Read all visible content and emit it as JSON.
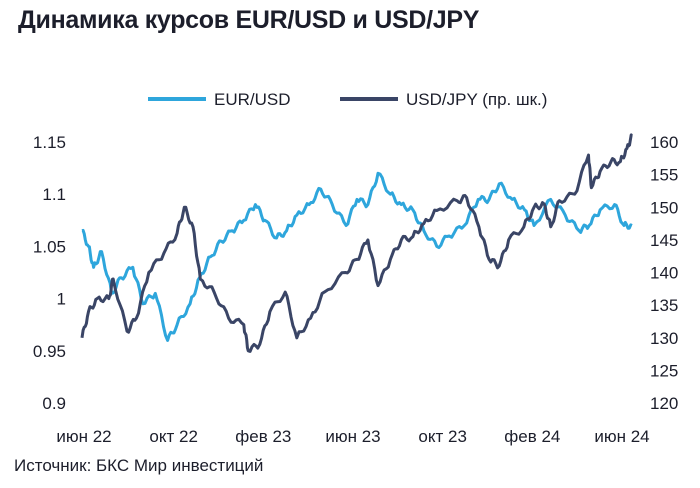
{
  "title": "Динамика курсов EUR/USD и USD/JPY",
  "source": "Источник: БКС Мир инвестиций",
  "colors": {
    "eurusd": "#2ea6dc",
    "usdjpy": "#3a4566",
    "text": "#1c1e2b"
  },
  "chart_data": {
    "type": "line",
    "title": "Динамика курсов EUR/USD и USD/JPY",
    "x_ticks": [
      "июн 22",
      "окт 22",
      "фев 23",
      "июн 23",
      "окт 23",
      "фев 24",
      "июн 24"
    ],
    "x_range": [
      "2022-06-01",
      "2024-06-28"
    ],
    "y_left": {
      "ticks": [
        "1.15",
        "1.1",
        "1.05",
        "1",
        "0.95",
        "0.9"
      ],
      "range": [
        0.9,
        1.15
      ]
    },
    "y_right": {
      "ticks": [
        "160",
        "155",
        "150",
        "145",
        "140",
        "135",
        "130",
        "125",
        "120"
      ],
      "range": [
        120,
        160
      ]
    },
    "grid": false,
    "legend_position": "top-right",
    "series": [
      {
        "name": "EUR/USD",
        "axis": "left",
        "color": "#2ea6dc",
        "points": [
          [
            "2022-06-01",
            1.065
          ],
          [
            "2022-06-10",
            1.05
          ],
          [
            "2022-06-17",
            1.03
          ],
          [
            "2022-06-28",
            1.045
          ],
          [
            "2022-07-12",
            1.005
          ],
          [
            "2022-07-25",
            1.02
          ],
          [
            "2022-08-10",
            1.03
          ],
          [
            "2022-08-24",
            0.995
          ],
          [
            "2022-09-10",
            1.005
          ],
          [
            "2022-09-27",
            0.96
          ],
          [
            "2022-10-10",
            0.975
          ],
          [
            "2022-10-28",
            0.995
          ],
          [
            "2022-11-10",
            1.02
          ],
          [
            "2022-11-25",
            1.04
          ],
          [
            "2022-12-10",
            1.055
          ],
          [
            "2022-12-25",
            1.065
          ],
          [
            "2023-01-10",
            1.075
          ],
          [
            "2023-01-26",
            1.09
          ],
          [
            "2023-02-08",
            1.075
          ],
          [
            "2023-02-24",
            1.058
          ],
          [
            "2023-03-10",
            1.065
          ],
          [
            "2023-03-24",
            1.08
          ],
          [
            "2023-04-10",
            1.09
          ],
          [
            "2023-04-26",
            1.105
          ],
          [
            "2023-05-12",
            1.09
          ],
          [
            "2023-05-31",
            1.07
          ],
          [
            "2023-06-15",
            1.095
          ],
          [
            "2023-06-30",
            1.09
          ],
          [
            "2023-07-14",
            1.12
          ],
          [
            "2023-07-31",
            1.1
          ],
          [
            "2023-08-15",
            1.09
          ],
          [
            "2023-08-31",
            1.085
          ],
          [
            "2023-09-15",
            1.065
          ],
          [
            "2023-10-03",
            1.05
          ],
          [
            "2023-10-20",
            1.06
          ],
          [
            "2023-11-10",
            1.07
          ],
          [
            "2023-11-29",
            1.095
          ],
          [
            "2023-12-14",
            1.095
          ],
          [
            "2023-12-28",
            1.11
          ],
          [
            "2024-01-15",
            1.095
          ],
          [
            "2024-02-01",
            1.085
          ],
          [
            "2024-02-14",
            1.07
          ],
          [
            "2024-03-08",
            1.095
          ],
          [
            "2024-03-28",
            1.08
          ],
          [
            "2024-04-16",
            1.065
          ],
          [
            "2024-04-30",
            1.07
          ],
          [
            "2024-05-15",
            1.085
          ],
          [
            "2024-06-04",
            1.09
          ],
          [
            "2024-06-17",
            1.07
          ],
          [
            "2024-06-28",
            1.07
          ]
        ]
      },
      {
        "name": "USD/JPY (пр. шк.)",
        "axis": "right",
        "color": "#3a4566",
        "points": [
          [
            "2022-06-01",
            130
          ],
          [
            "2022-06-10",
            134
          ],
          [
            "2022-06-22",
            136
          ],
          [
            "2022-07-08",
            136
          ],
          [
            "2022-07-14",
            139
          ],
          [
            "2022-08-02",
            131
          ],
          [
            "2022-08-15",
            133
          ],
          [
            "2022-09-01",
            140
          ],
          [
            "2022-09-22",
            143
          ],
          [
            "2022-10-10",
            146
          ],
          [
            "2022-10-20",
            150
          ],
          [
            "2022-11-01",
            147
          ],
          [
            "2022-11-11",
            139
          ],
          [
            "2022-11-30",
            137
          ],
          [
            "2022-12-20",
            133
          ],
          [
            "2023-01-10",
            132
          ],
          [
            "2023-01-16",
            128
          ],
          [
            "2023-02-01",
            129
          ],
          [
            "2023-02-15",
            134
          ],
          [
            "2023-03-08",
            137
          ],
          [
            "2023-03-24",
            130
          ],
          [
            "2023-04-12",
            133
          ],
          [
            "2023-05-01",
            137
          ],
          [
            "2023-05-30",
            140
          ],
          [
            "2023-06-15",
            142
          ],
          [
            "2023-06-30",
            145
          ],
          [
            "2023-07-14",
            138
          ],
          [
            "2023-07-31",
            142
          ],
          [
            "2023-08-15",
            145
          ],
          [
            "2023-08-31",
            145.5
          ],
          [
            "2023-09-15",
            147.5
          ],
          [
            "2023-10-03",
            149.5
          ],
          [
            "2023-10-31",
            151
          ],
          [
            "2023-11-13",
            151.5
          ],
          [
            "2023-11-30",
            147
          ],
          [
            "2023-12-14",
            142
          ],
          [
            "2023-12-28",
            141
          ],
          [
            "2024-01-10",
            145
          ],
          [
            "2024-01-31",
            147
          ],
          [
            "2024-02-14",
            150
          ],
          [
            "2024-02-28",
            150.5
          ],
          [
            "2024-03-08",
            147
          ],
          [
            "2024-03-20",
            151
          ],
          [
            "2024-04-10",
            152
          ],
          [
            "2024-04-29",
            158
          ],
          [
            "2024-05-03",
            153
          ],
          [
            "2024-05-15",
            155.5
          ],
          [
            "2024-05-30",
            157
          ],
          [
            "2024-06-12",
            157
          ],
          [
            "2024-06-21",
            159
          ],
          [
            "2024-06-28",
            161
          ]
        ]
      }
    ]
  }
}
